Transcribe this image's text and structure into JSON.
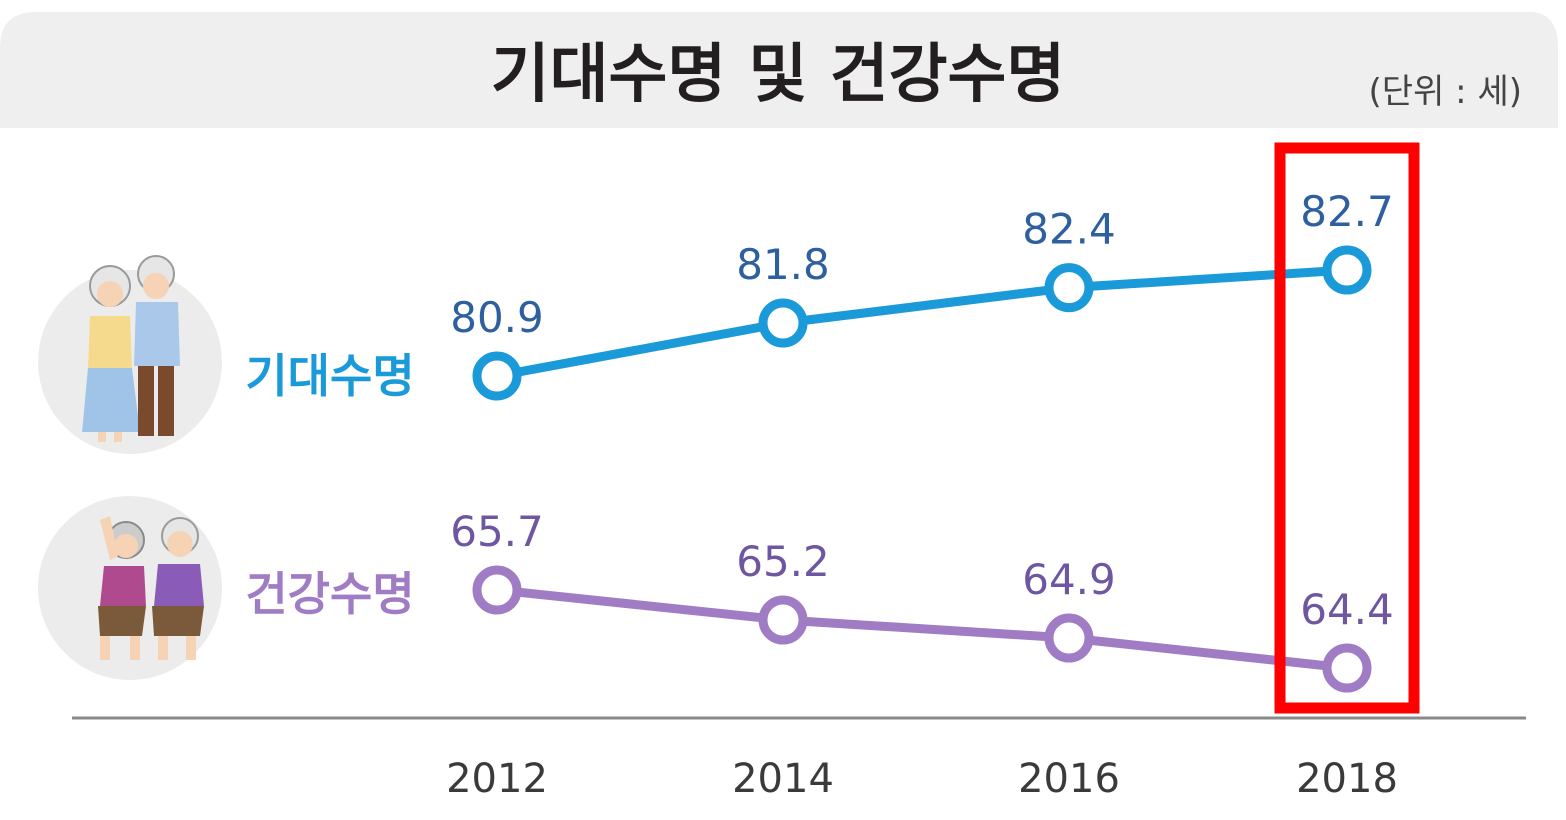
{
  "chart_data": {
    "type": "line",
    "title": "기대수명 및 건강수명",
    "unit_label": "(단위 : 세)",
    "categories": [
      "2012",
      "2014",
      "2016",
      "2018"
    ],
    "series": [
      {
        "name": "기대수명",
        "values": [
          80.9,
          81.8,
          82.4,
          82.7
        ],
        "color": "#1a9ad9",
        "label_color": "#2e5f9e"
      },
      {
        "name": "건강수명",
        "values": [
          65.7,
          65.2,
          64.9,
          64.4
        ],
        "color": "#a07cc5",
        "label_color": "#6e56a0"
      }
    ],
    "highlight": {
      "category": "2018",
      "color": "#ff0000"
    },
    "header_bg": "#efefef",
    "axis_color": "#8a8a8a"
  }
}
